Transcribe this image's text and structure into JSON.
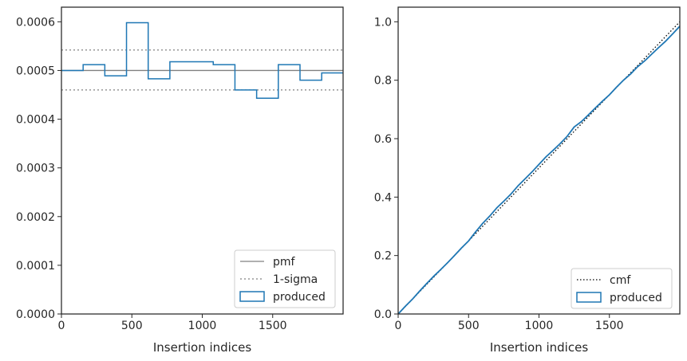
{
  "chart_data": [
    {
      "type": "step",
      "xlabel": "Insertion indices",
      "ylabel": "",
      "xlim": [
        0,
        2000
      ],
      "ylim": [
        0,
        0.00063
      ],
      "x_ticks": [
        0,
        500,
        1000,
        1500
      ],
      "x_tick_labels": [
        "0",
        "500",
        "1000",
        "1500"
      ],
      "y_ticks": [
        0,
        0.0001,
        0.0002,
        0.0003,
        0.0004,
        0.0005,
        0.0006
      ],
      "y_tick_labels": [
        "0.0000",
        "0.0001",
        "0.0002",
        "0.0003",
        "0.0004",
        "0.0005",
        "0.0006"
      ],
      "pmf": 0.0005,
      "sigma_band": [
        0.00046,
        0.000542
      ],
      "bin_edges": [
        0,
        154,
        308,
        462,
        616,
        770,
        924,
        1078,
        1232,
        1386,
        1540,
        1694,
        1848,
        2000
      ],
      "produced": [
        0.0005,
        0.000512,
        0.000489,
        0.000598,
        0.000483,
        0.000518,
        0.000518,
        0.000512,
        0.00046,
        0.000443,
        0.000512,
        0.00048,
        0.000495
      ],
      "legend": {
        "position": "lower-right",
        "entries": [
          "pmf",
          "1-sigma",
          "produced"
        ]
      },
      "colors": {
        "pmf": "#808080",
        "sigma": "#808080",
        "produced": "#1f77b4"
      }
    },
    {
      "type": "line",
      "xlabel": "Insertion indices",
      "ylabel": "",
      "xlim": [
        0,
        2000
      ],
      "ylim": [
        0,
        1.05
      ],
      "x_ticks": [
        0,
        500,
        1000,
        1500
      ],
      "x_tick_labels": [
        "0",
        "500",
        "1000",
        "1500"
      ],
      "y_ticks": [
        0,
        0.2,
        0.4,
        0.6,
        0.8,
        1.0
      ],
      "y_tick_labels": [
        "0.0",
        "0.2",
        "0.4",
        "0.6",
        "0.8",
        "1.0"
      ],
      "cmf": {
        "x": [
          0,
          2000
        ],
        "y": [
          0,
          1.0
        ]
      },
      "produced": {
        "x": [
          0,
          50,
          100,
          150,
          200,
          250,
          300,
          350,
          400,
          450,
          500,
          550,
          600,
          650,
          700,
          750,
          800,
          850,
          900,
          950,
          1000,
          1050,
          1100,
          1150,
          1200,
          1250,
          1300,
          1350,
          1400,
          1450,
          1500,
          1550,
          1600,
          1650,
          1700,
          1750,
          1800,
          1850,
          1900,
          1950,
          2000
        ],
        "y": [
          0,
          0.026,
          0.05,
          0.077,
          0.103,
          0.128,
          0.151,
          0.175,
          0.2,
          0.226,
          0.25,
          0.281,
          0.31,
          0.335,
          0.363,
          0.386,
          0.41,
          0.438,
          0.462,
          0.486,
          0.512,
          0.538,
          0.56,
          0.583,
          0.608,
          0.64,
          0.658,
          0.681,
          0.705,
          0.728,
          0.75,
          0.776,
          0.8,
          0.821,
          0.846,
          0.866,
          0.889,
          0.912,
          0.934,
          0.959,
          0.985
        ]
      },
      "legend": {
        "position": "lower-right",
        "entries": [
          "cmf",
          "produced"
        ]
      },
      "colors": {
        "cmf": "#000000",
        "produced": "#1f77b4"
      }
    }
  ]
}
